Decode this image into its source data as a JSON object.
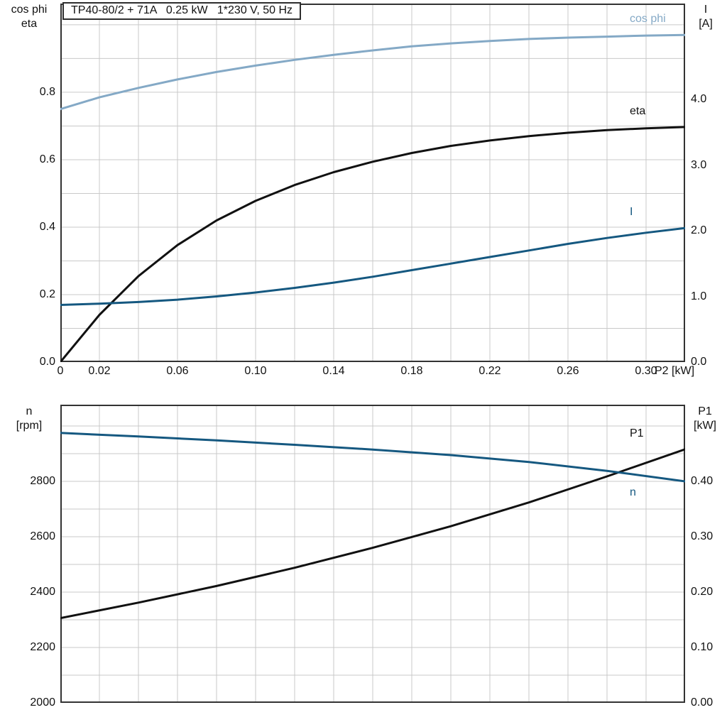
{
  "colors": {
    "light_blue": "#84a9c6",
    "dark_blue": "#155880",
    "black": "#111111",
    "grid": "#c9c9c9",
    "frame": "#333333"
  },
  "chart_data": [
    {
      "type": "line",
      "title": "TP40-80/2 + 71A   0.25 kW   1*230 V, 50 Hz",
      "x": {
        "label": "P2 [kW]",
        "min": 0,
        "max": 0.32,
        "grid_step": 0.02,
        "tick_values": [
          0,
          0.02,
          0.06,
          0.1,
          0.14,
          0.18,
          0.22,
          0.26,
          0.3
        ],
        "tick_labels": [
          "0",
          "0.02",
          "0.06",
          "0.10",
          "0.14",
          "0.18",
          "0.22",
          "0.26",
          "0.30"
        ]
      },
      "y_left": {
        "corner_lines": [
          "cos phi",
          "eta"
        ],
        "min": 0,
        "max": 1.063,
        "grid_step": 0.1,
        "tick_values": [
          0,
          0.2,
          0.4,
          0.6,
          0.8
        ],
        "tick_labels": [
          "0.0",
          "0.2",
          "0.4",
          "0.6",
          "0.8"
        ]
      },
      "y_right": {
        "corner_lines": [
          "I",
          "[A]"
        ],
        "min": 0,
        "max": 5.46,
        "tick_values": [
          0,
          1,
          2,
          3,
          4
        ],
        "tick_labels": [
          "0.0",
          "1.0",
          "2.0",
          "3.0",
          "4.0"
        ]
      },
      "x_values": [
        0,
        0.02,
        0.04,
        0.06,
        0.08,
        0.1,
        0.12,
        0.14,
        0.16,
        0.18,
        0.2,
        0.22,
        0.24,
        0.26,
        0.28,
        0.3,
        0.32
      ],
      "series": [
        {
          "name": "cos phi",
          "axis": "left",
          "color_key": "light_blue",
          "values": [
            0.75,
            0.785,
            0.813,
            0.838,
            0.86,
            0.879,
            0.896,
            0.911,
            0.924,
            0.936,
            0.945,
            0.952,
            0.958,
            0.962,
            0.965,
            0.968,
            0.97
          ]
        },
        {
          "name": "eta",
          "axis": "left",
          "color_key": "black",
          "values": [
            0,
            0.14,
            0.255,
            0.347,
            0.42,
            0.478,
            0.525,
            0.563,
            0.594,
            0.62,
            0.641,
            0.657,
            0.67,
            0.68,
            0.688,
            0.693,
            0.697
          ]
        },
        {
          "name": "I",
          "axis": "right",
          "color_key": "dark_blue",
          "values": [
            0.87,
            0.89,
            0.915,
            0.95,
            1.0,
            1.06,
            1.13,
            1.21,
            1.3,
            1.4,
            1.5,
            1.6,
            1.7,
            1.8,
            1.89,
            1.97,
            2.04
          ]
        }
      ]
    },
    {
      "type": "line",
      "x": {
        "min": 0,
        "max": 0.32,
        "grid_step": 0.02
      },
      "y_left": {
        "corner_lines": [
          "n",
          "[rpm]"
        ],
        "min": 2000,
        "max": 3077,
        "grid_step": 100,
        "tick_values": [
          2000,
          2200,
          2400,
          2600,
          2800
        ],
        "tick_labels": [
          "2000",
          "2200",
          "2400",
          "2600",
          "2800"
        ]
      },
      "y_right": {
        "corner_lines": [
          "P1",
          "[kW]"
        ],
        "min": 0,
        "max": 0.5385,
        "tick_values": [
          0,
          0.1,
          0.2,
          0.3,
          0.4
        ],
        "tick_labels": [
          "0.00",
          "0.10",
          "0.20",
          "0.30",
          "0.40"
        ]
      },
      "x_values": [
        0,
        0.04,
        0.08,
        0.12,
        0.16,
        0.2,
        0.24,
        0.28,
        0.32
      ],
      "series": [
        {
          "name": "P1",
          "axis": "right",
          "color_key": "black",
          "values": [
            0.153,
            0.181,
            0.211,
            0.244,
            0.28,
            0.319,
            0.362,
            0.409,
            0.458
          ]
        },
        {
          "name": "n",
          "axis": "left",
          "color_key": "dark_blue",
          "values": [
            2975,
            2962,
            2948,
            2932,
            2915,
            2895,
            2870,
            2838,
            2800
          ]
        }
      ]
    }
  ]
}
